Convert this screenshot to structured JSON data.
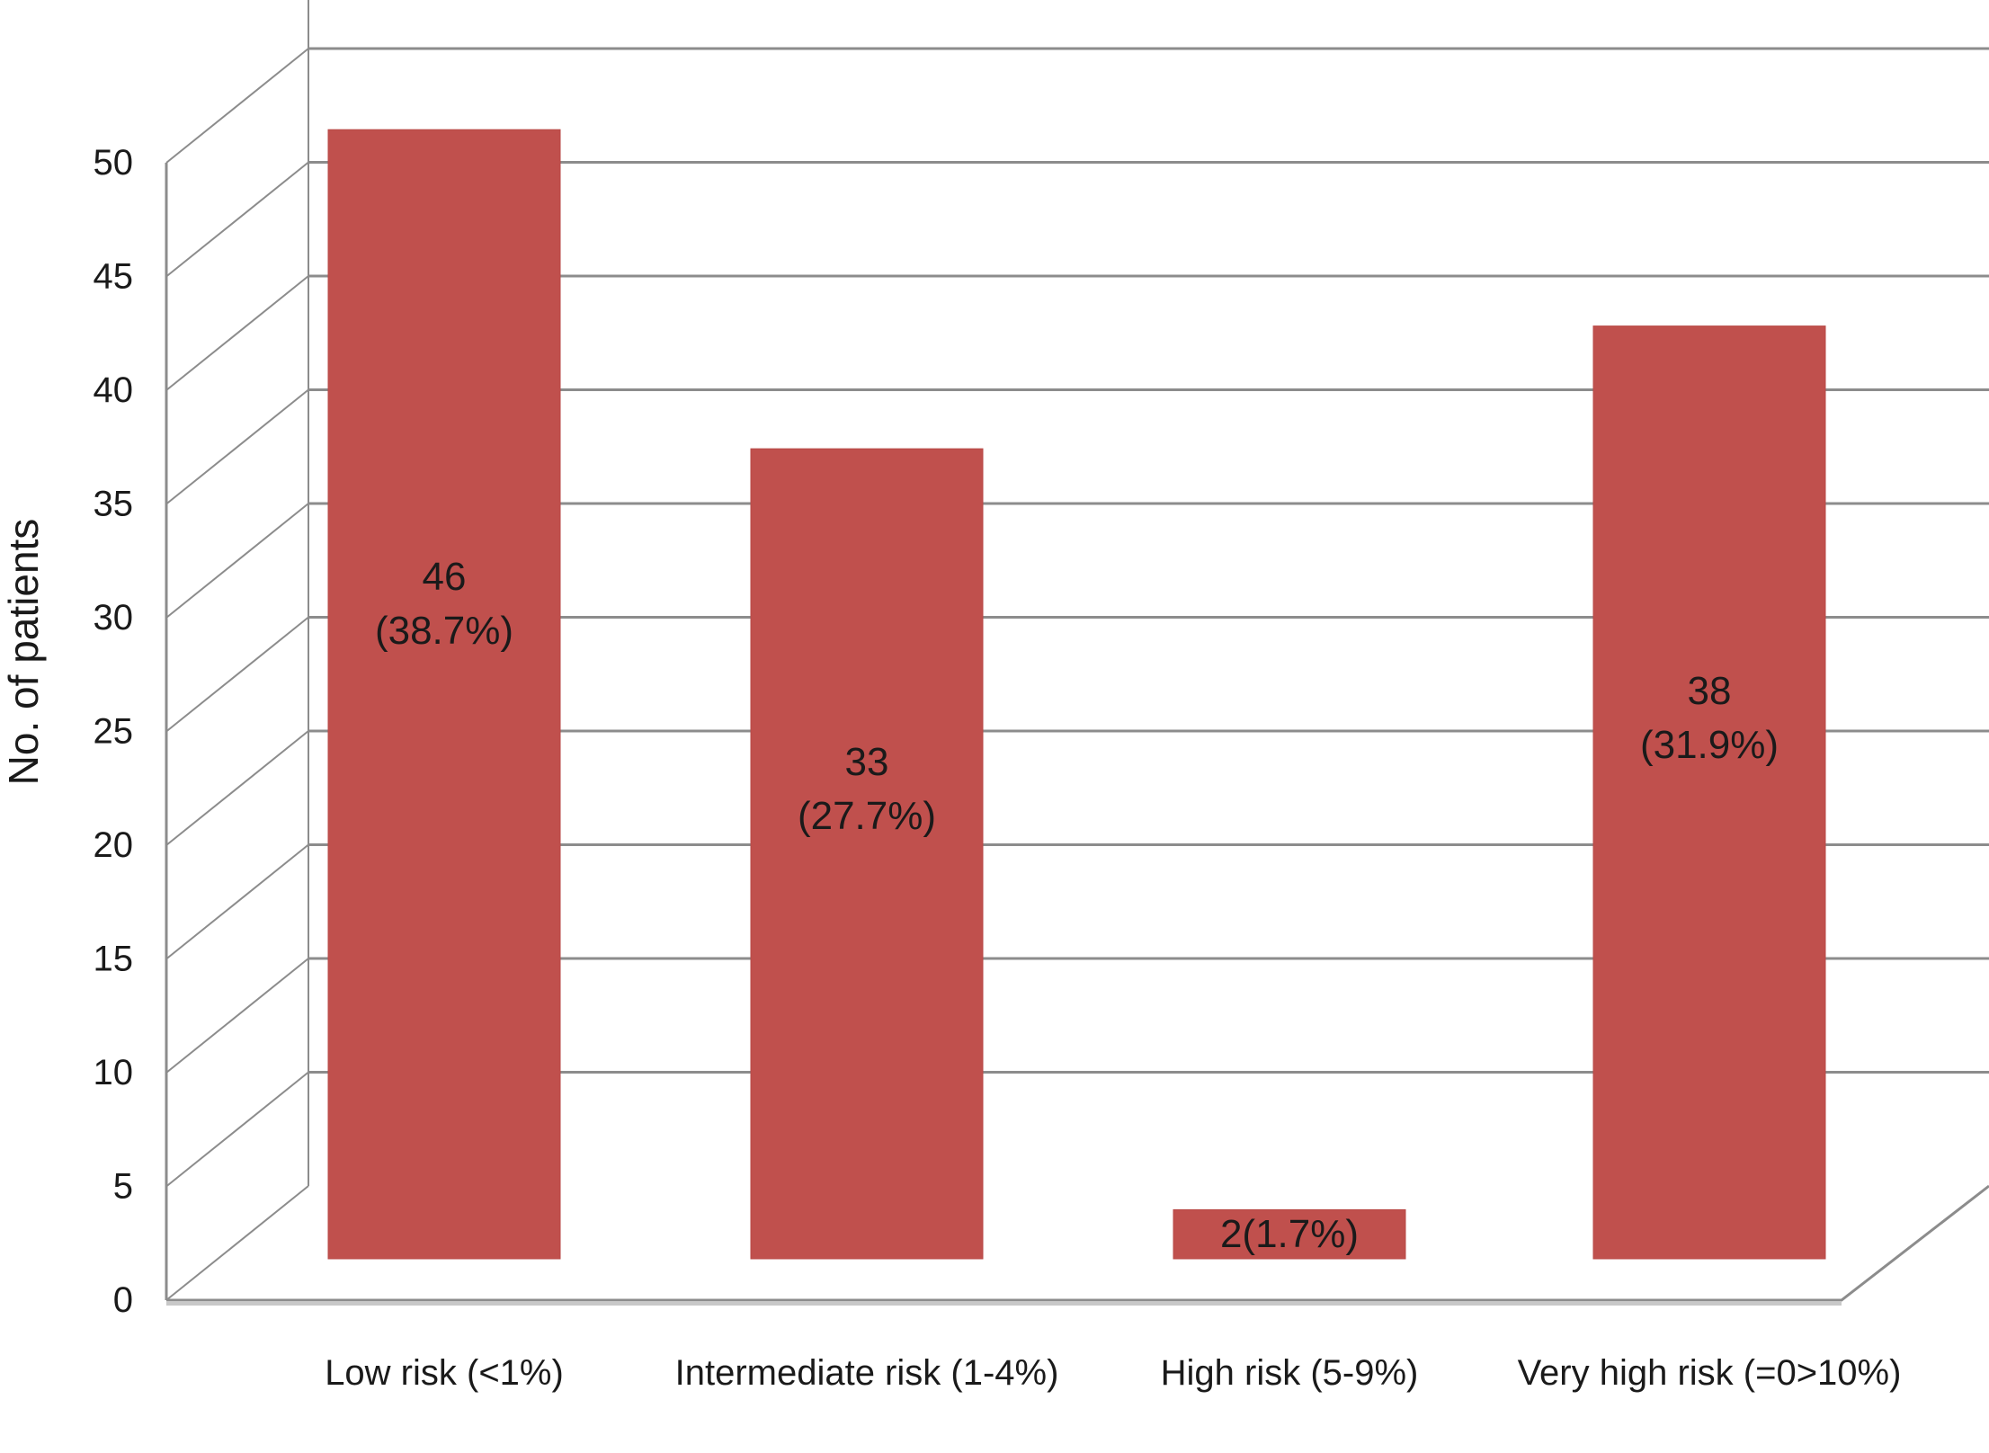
{
  "chart_data": {
    "type": "bar",
    "style": "3d",
    "title": "",
    "xlabel": "",
    "ylabel": "No. of patients",
    "ylim": [
      0,
      50
    ],
    "yticks": [
      "0",
      "5",
      "10",
      "15",
      "20",
      "25",
      "30",
      "35",
      "40",
      "45",
      "50"
    ],
    "grid": true,
    "categories": [
      "Low risk (<1%)",
      "Intermediate risk (1-4%)",
      "High risk (5-9%)",
      "Very high risk (=0>10%)"
    ],
    "values": [
      46,
      33,
      2,
      38
    ],
    "data_labels": [
      [
        "46",
        "(38.7%)"
      ],
      [
        "33",
        "(27.7%)"
      ],
      [
        "2(1.7%)"
      ],
      [
        "38",
        "(31.9%)"
      ]
    ],
    "colors": {
      "bar": "#c0504d",
      "grid": "#8c8c8c",
      "floor": "#8c8c8c"
    }
  }
}
